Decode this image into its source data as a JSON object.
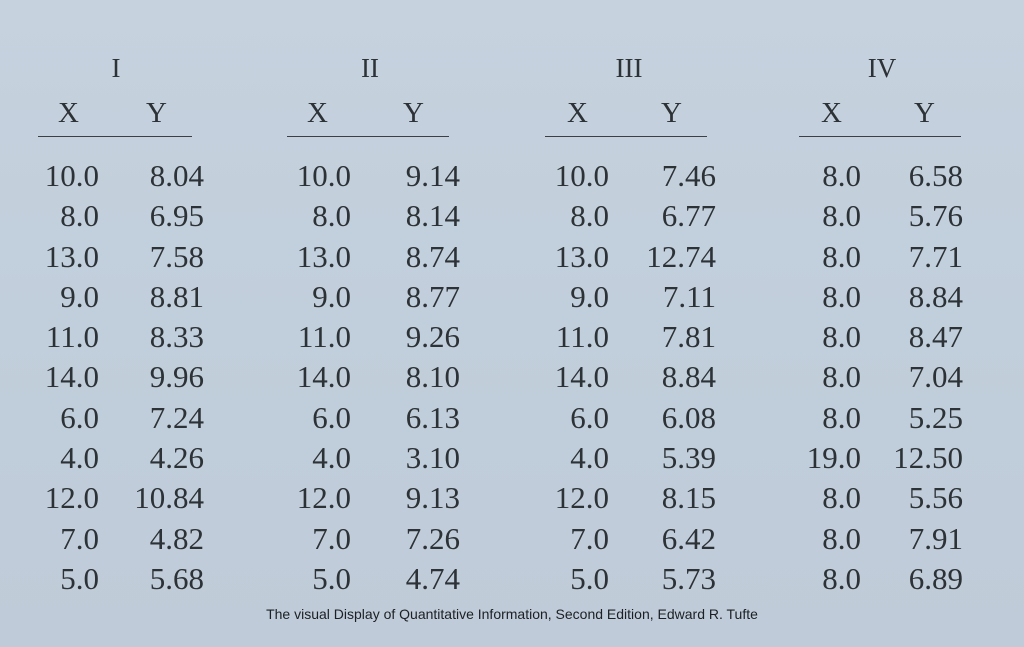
{
  "groups": [
    {
      "title": "I",
      "x_label": "X",
      "y_label": "Y",
      "rows": [
        [
          "10.0",
          "8.04"
        ],
        [
          "8.0",
          "6.95"
        ],
        [
          "13.0",
          "7.58"
        ],
        [
          "9.0",
          "8.81"
        ],
        [
          "11.0",
          "8.33"
        ],
        [
          "14.0",
          "9.96"
        ],
        [
          "6.0",
          "7.24"
        ],
        [
          "4.0",
          "4.26"
        ],
        [
          "12.0",
          "10.84"
        ],
        [
          "7.0",
          "4.82"
        ],
        [
          "5.0",
          "5.68"
        ]
      ]
    },
    {
      "title": "II",
      "x_label": "X",
      "y_label": "Y",
      "rows": [
        [
          "10.0",
          "9.14"
        ],
        [
          "8.0",
          "8.14"
        ],
        [
          "13.0",
          "8.74"
        ],
        [
          "9.0",
          "8.77"
        ],
        [
          "11.0",
          "9.26"
        ],
        [
          "14.0",
          "8.10"
        ],
        [
          "6.0",
          "6.13"
        ],
        [
          "4.0",
          "3.10"
        ],
        [
          "12.0",
          "9.13"
        ],
        [
          "7.0",
          "7.26"
        ],
        [
          "5.0",
          "4.74"
        ]
      ]
    },
    {
      "title": "III",
      "x_label": "X",
      "y_label": "Y",
      "rows": [
        [
          "10.0",
          "7.46"
        ],
        [
          "8.0",
          "6.77"
        ],
        [
          "13.0",
          "12.74"
        ],
        [
          "9.0",
          "7.11"
        ],
        [
          "11.0",
          "7.81"
        ],
        [
          "14.0",
          "8.84"
        ],
        [
          "6.0",
          "6.08"
        ],
        [
          "4.0",
          "5.39"
        ],
        [
          "12.0",
          "8.15"
        ],
        [
          "7.0",
          "6.42"
        ],
        [
          "5.0",
          "5.73"
        ]
      ]
    },
    {
      "title": "IV",
      "x_label": "X",
      "y_label": "Y",
      "rows": [
        [
          "8.0",
          "6.58"
        ],
        [
          "8.0",
          "5.76"
        ],
        [
          "8.0",
          "7.71"
        ],
        [
          "8.0",
          "8.84"
        ],
        [
          "8.0",
          "8.47"
        ],
        [
          "8.0",
          "7.04"
        ],
        [
          "8.0",
          "5.25"
        ],
        [
          "19.0",
          "12.50"
        ],
        [
          "8.0",
          "5.56"
        ],
        [
          "8.0",
          "7.91"
        ],
        [
          "8.0",
          "6.89"
        ]
      ]
    }
  ],
  "caption": "The visual Display of Quantitative Information, Second Edition, Edward R. Tufte"
}
